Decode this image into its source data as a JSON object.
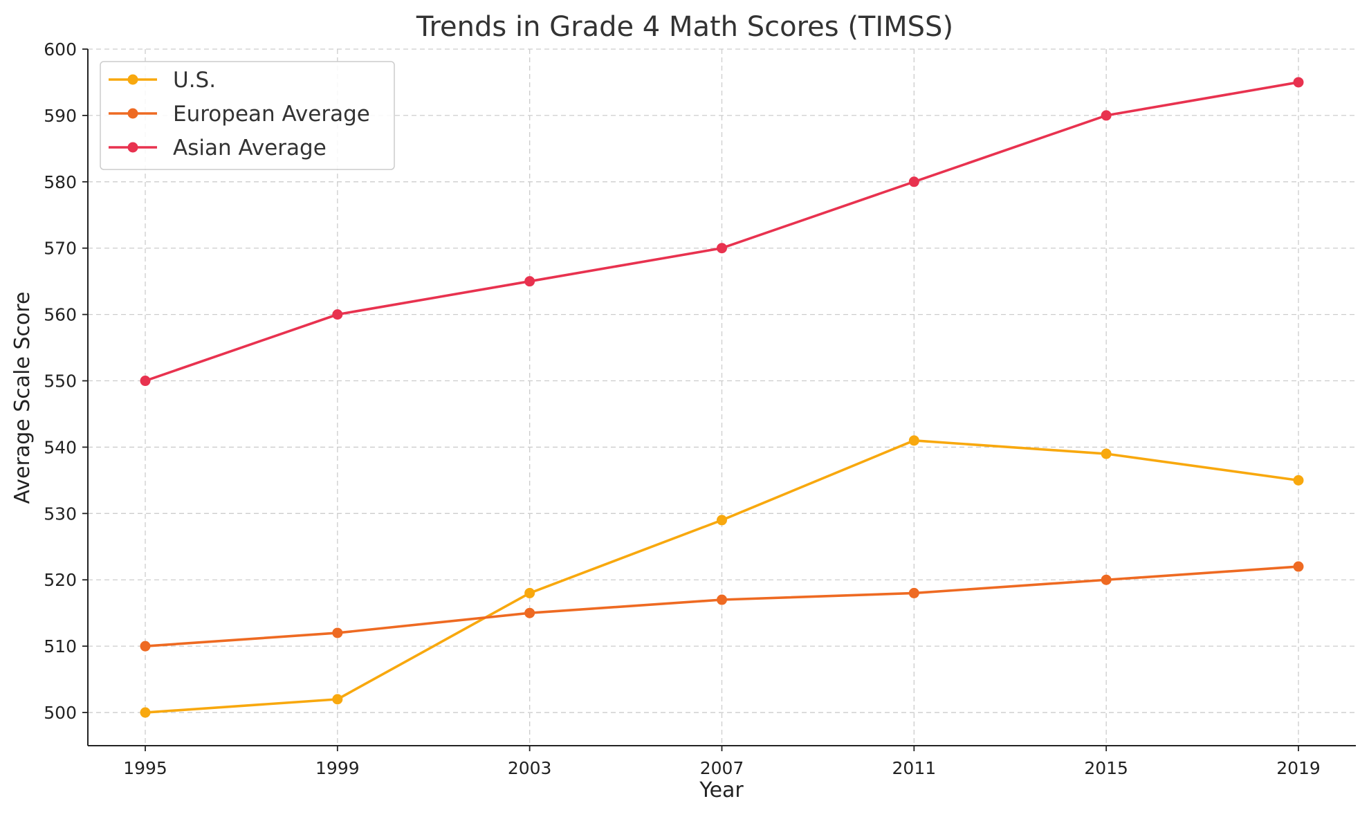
{
  "chart_data": {
    "type": "line",
    "title": "Trends in Grade 4 Math Scores (TIMSS)",
    "xlabel": "Year",
    "ylabel": "Average Scale Score",
    "x": [
      1995,
      1999,
      2003,
      2007,
      2011,
      2015,
      2019
    ],
    "x_tick_labels": [
      "1995",
      "1999",
      "2003",
      "2007",
      "2011",
      "2015",
      "2019"
    ],
    "ylim": [
      495,
      600
    ],
    "y_ticks": [
      500,
      510,
      520,
      530,
      540,
      550,
      560,
      570,
      580,
      590,
      600
    ],
    "y_tick_labels": [
      "500",
      "510",
      "520",
      "530",
      "540",
      "550",
      "560",
      "570",
      "580",
      "590",
      "600"
    ],
    "grid": true,
    "legend_position": "top-left",
    "series": [
      {
        "name": "U.S.",
        "color": "#F8A80E",
        "values": [
          500,
          502,
          518,
          529,
          541,
          539,
          535
        ]
      },
      {
        "name": "European Average",
        "color": "#EE6A22",
        "values": [
          510,
          512,
          515,
          517,
          518,
          520,
          522
        ]
      },
      {
        "name": "Asian Average",
        "color": "#E8324F",
        "values": [
          550,
          560,
          565,
          570,
          580,
          590,
          595
        ]
      }
    ]
  }
}
